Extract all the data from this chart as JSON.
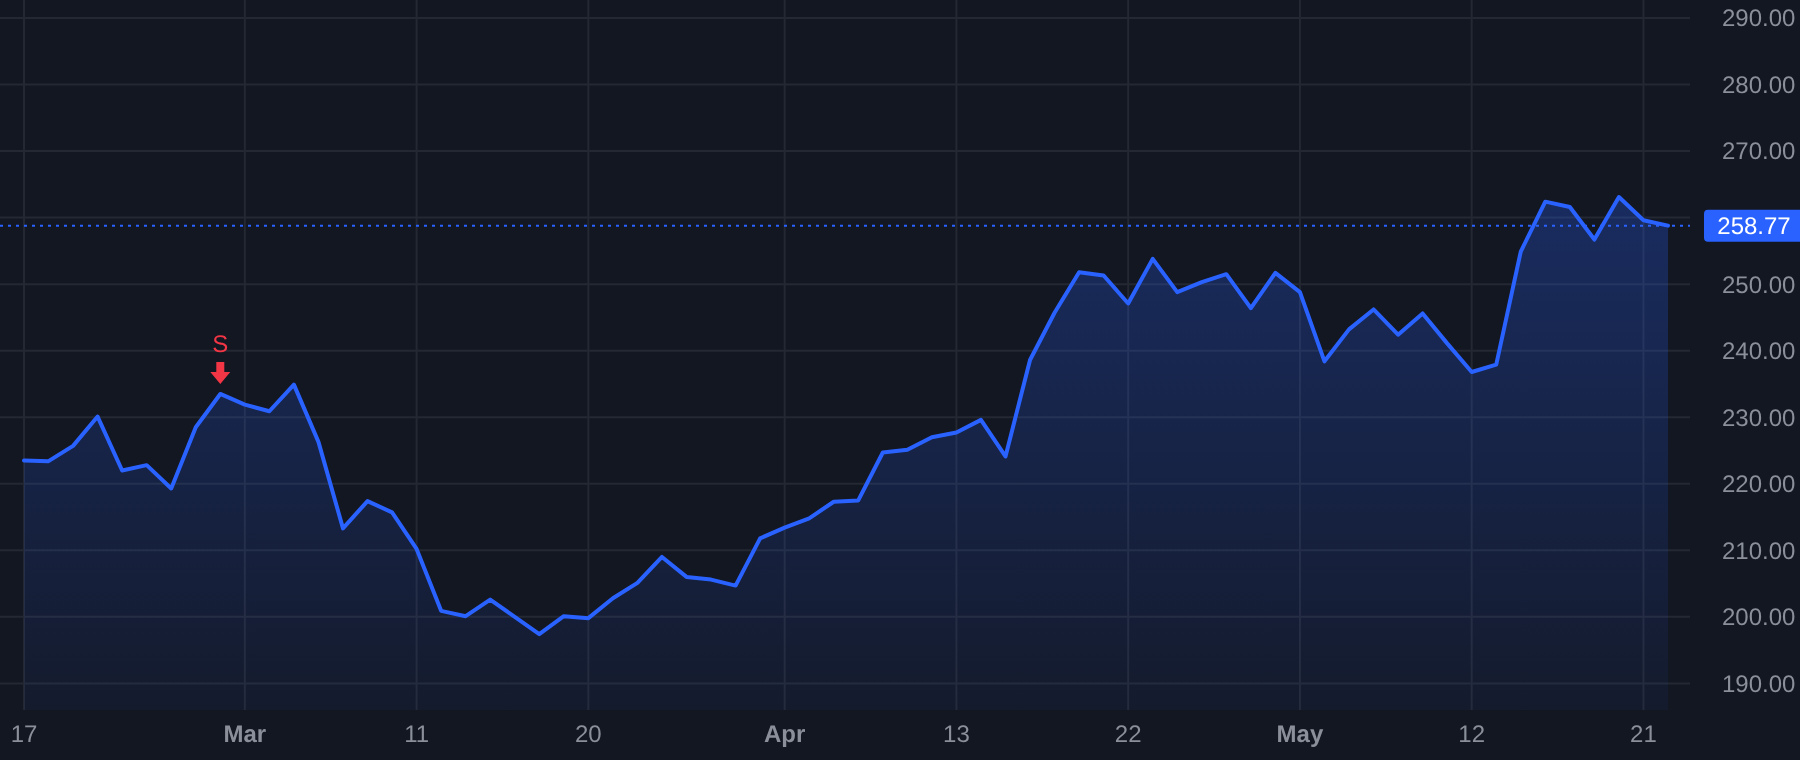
{
  "chart_data": {
    "type": "area",
    "categories": [
      "17",
      null,
      null,
      null,
      null,
      null,
      null,
      null,
      null,
      "Mar",
      null,
      null,
      null,
      null,
      null,
      null,
      "11",
      null,
      null,
      null,
      null,
      null,
      null,
      "20",
      null,
      null,
      null,
      null,
      null,
      null,
      null,
      "Apr",
      null,
      null,
      null,
      null,
      null,
      null,
      "13",
      null,
      null,
      null,
      null,
      null,
      null,
      "22",
      null,
      null,
      null,
      null,
      null,
      null,
      "May",
      null,
      null,
      null,
      null,
      null,
      null,
      "12",
      null,
      null,
      null,
      null,
      null,
      null,
      "21",
      null
    ],
    "series": [
      {
        "color": "#2962ff",
        "values": [
          223.5,
          223.4,
          225.7,
          230.1,
          222.0,
          222.8,
          219.3,
          228.5,
          233.5,
          231.9,
          230.9,
          234.9,
          226.3,
          213.3,
          217.4,
          215.7,
          210.2,
          200.9,
          200.1,
          202.6,
          200.0,
          197.4,
          200.1,
          199.8,
          202.8,
          205.1,
          209.0,
          206.0,
          205.6,
          204.7,
          211.8,
          213.4,
          214.8,
          217.3,
          217.5,
          224.7,
          225.1,
          227.0,
          227.7,
          229.6,
          224.1,
          238.6,
          245.7,
          251.8,
          251.3,
          247.1,
          253.8,
          248.8,
          250.3,
          251.5,
          246.4,
          251.7,
          248.8,
          238.4,
          243.2,
          246.2,
          242.4,
          245.6,
          241.1,
          236.8,
          237.9,
          254.9,
          262.4,
          261.6,
          256.7,
          263.1,
          259.6,
          258.8
        ]
      }
    ],
    "ylim": [
      186,
      290
    ],
    "yticks": [
      {
        "value": 190,
        "label": "190.00"
      },
      {
        "value": 200,
        "label": "200.00"
      },
      {
        "value": 210,
        "label": "210.00"
      },
      {
        "value": 220,
        "label": "220.00"
      },
      {
        "value": 230,
        "label": "230.00"
      },
      {
        "value": 240,
        "label": "240.00"
      },
      {
        "value": 250,
        "label": "250.00"
      },
      {
        "value": 260,
        "label": null
      },
      {
        "value": 270,
        "label": "270.00"
      },
      {
        "value": 280,
        "label": "280.00"
      },
      {
        "value": 290,
        "label": "290.00"
      }
    ],
    "ref_lines": [
      {
        "axis": "y",
        "value": 258.77,
        "label": "258.77",
        "color": "#2962ff",
        "line_style": "dotted"
      }
    ],
    "annotations": [
      {
        "text": "S",
        "y": 233.5
      }
    ],
    "grid": true,
    "line_style": "solid"
  }
}
